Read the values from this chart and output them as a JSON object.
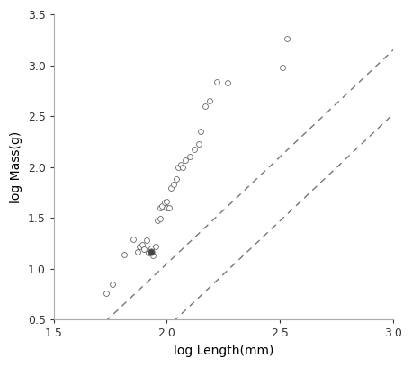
{
  "x_data": [
    1.73,
    1.76,
    1.81,
    1.85,
    1.87,
    1.88,
    1.89,
    1.9,
    1.91,
    1.92,
    1.93,
    1.94,
    1.95,
    1.96,
    1.97,
    1.97,
    1.98,
    1.99,
    2.0,
    2.0,
    2.01,
    2.02,
    2.03,
    2.04,
    2.05,
    2.06,
    2.07,
    2.08,
    2.1,
    2.12,
    2.14,
    2.15,
    2.17,
    2.19,
    2.22,
    2.27,
    2.51,
    2.53
  ],
  "y_data": [
    0.76,
    0.85,
    1.14,
    1.29,
    1.17,
    1.22,
    1.24,
    1.19,
    1.28,
    1.16,
    1.2,
    1.13,
    1.22,
    1.48,
    1.49,
    1.6,
    1.62,
    1.65,
    1.6,
    1.66,
    1.6,
    1.79,
    1.83,
    1.88,
    2.0,
    2.02,
    2.0,
    2.07,
    2.1,
    2.17,
    2.23,
    2.35,
    2.6,
    2.65,
    2.84,
    2.83,
    2.98,
    3.26
  ],
  "filled_point_x": 1.93,
  "filled_point_y": 1.17,
  "slope": 2.1,
  "line1_intercept": -3.15,
  "line2_intercept": -3.78,
  "xlim": [
    1.5,
    3.0
  ],
  "ylim": [
    0.5,
    3.5
  ],
  "xticks": [
    1.5,
    2.0,
    2.5,
    3.0
  ],
  "yticks": [
    0.5,
    1.0,
    1.5,
    2.0,
    2.5,
    3.0,
    3.5
  ],
  "xlabel": "log Length(mm)",
  "ylabel": "log Mass(g)",
  "marker_size": 18,
  "marker_color": "white",
  "marker_edge_color": "#666666",
  "line_color": "#777777",
  "line_width": 1.0,
  "bg_color": "#ffffff"
}
